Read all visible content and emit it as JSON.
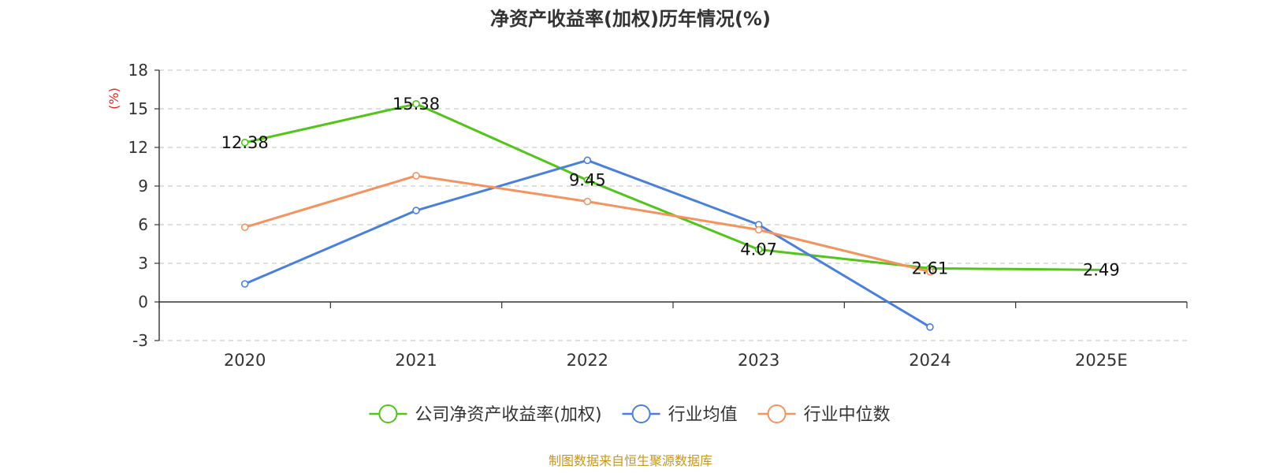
{
  "chart_data": {
    "type": "line",
    "title": "净资产收益率(加权)历年情况(%)",
    "ylabel": "(%)",
    "xlabel": "",
    "categories": [
      "2020",
      "2021",
      "2022",
      "2023",
      "2024",
      "2025E"
    ],
    "ylim": [
      -3,
      18
    ],
    "yticks": [
      -3,
      0,
      3,
      6,
      9,
      12,
      15,
      18
    ],
    "grid": true,
    "legend_position": "bottom-center",
    "series": [
      {
        "name": "公司净资产收益率(加权)",
        "color": "#52c41a",
        "values": [
          12.38,
          15.38,
          9.45,
          4.07,
          2.61,
          2.49
        ],
        "labels": [
          "12.38",
          "15.38",
          "9.45",
          "4.07",
          "2.61",
          "2.49"
        ],
        "marker": [
          true,
          true,
          true,
          true,
          true,
          false
        ]
      },
      {
        "name": "行业均值",
        "color": "#4a7fdc",
        "values": [
          1.4,
          7.1,
          11.0,
          6.0,
          -1.95,
          null
        ]
      },
      {
        "name": "行业中位数",
        "color": "#f5925e",
        "values": [
          5.8,
          9.8,
          7.8,
          5.6,
          2.35,
          null
        ]
      }
    ],
    "source": "制图数据来自恒生聚源数据库",
    "ylabel_color": "#e8231d",
    "source_color": "#c8961e"
  }
}
